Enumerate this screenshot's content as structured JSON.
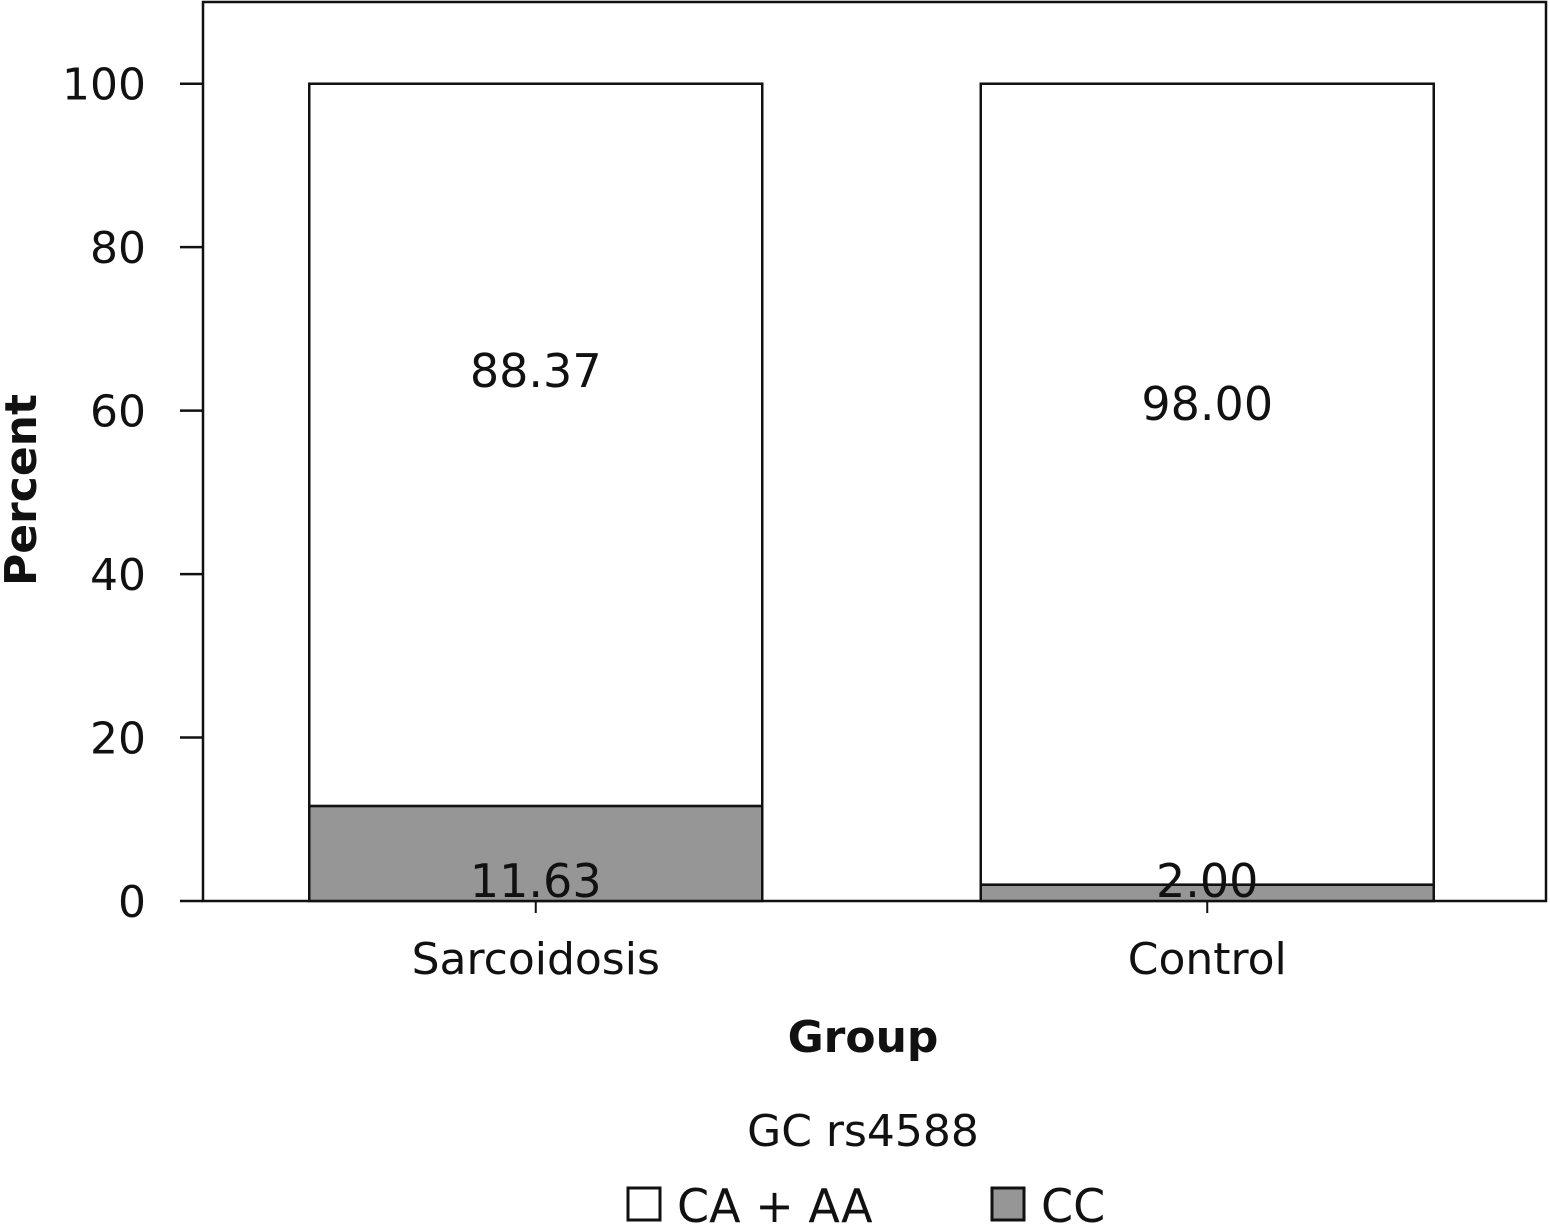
{
  "chart_data": {
    "type": "bar",
    "stacked": true,
    "categories": [
      "Sarcoidosis",
      "Control"
    ],
    "series": [
      {
        "name": "CC",
        "values": [
          11.63,
          2.0
        ],
        "labels": [
          "11.63",
          "2.00"
        ],
        "color": "#969696"
      },
      {
        "name": "CA + AA",
        "values": [
          88.37,
          98.0
        ],
        "labels": [
          "88.37",
          "98.00"
        ],
        "color": "#ffffff"
      }
    ],
    "xlabel": "Group",
    "ylabel": "Percent",
    "ylim": [
      0,
      110
    ],
    "yticks": [
      "0",
      "20",
      "40",
      "60",
      "80",
      "100"
    ],
    "legend": {
      "title": "GC rs4588",
      "position": "bottom",
      "entries": [
        "CA + AA",
        "CC"
      ]
    },
    "grid": false
  }
}
